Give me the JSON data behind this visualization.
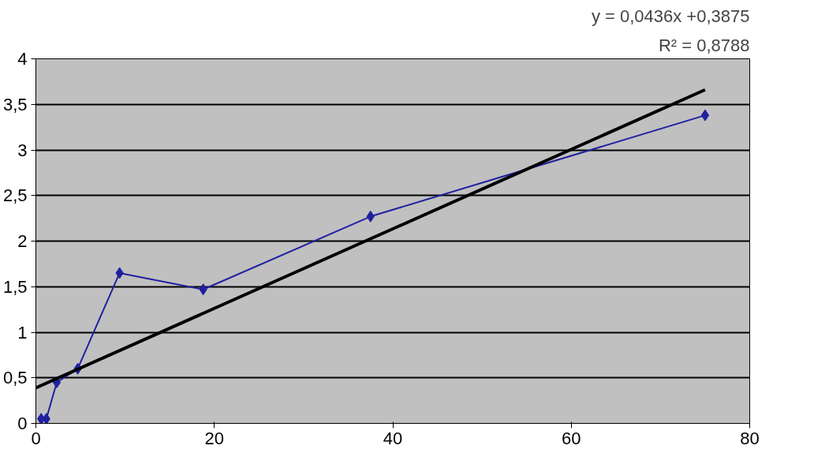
{
  "chart_data": {
    "type": "line",
    "x": [
      0.59,
      1.17,
      2.34,
      4.69,
      9.38,
      18.75,
      37.5,
      75
    ],
    "series": [
      {
        "color": "#2020a0",
        "values": [
          0.05,
          0.05,
          0.45,
          0.6,
          1.65,
          1.47,
          2.27,
          3.38
        ],
        "marker": "diamond"
      },
      {
        "color": "#000000",
        "x": [
          0,
          75
        ],
        "values": [
          0.39,
          3.66
        ],
        "marker": "none"
      }
    ],
    "xlim": [
      0,
      80
    ],
    "xticks": [
      0,
      20,
      40,
      60,
      80
    ],
    "ylim": [
      0,
      4
    ],
    "yticks": [
      0,
      {
        "value": 0.5,
        "label": "0,5"
      },
      1,
      {
        "value": 1.5,
        "label": "1,5"
      },
      2,
      {
        "value": 2.5,
        "label": "2,5"
      },
      3,
      {
        "value": 3.5,
        "label": "3,5"
      },
      4
    ],
    "grid": "y",
    "annotations": [
      "y = 0,0436x +0,3875",
      "R² = 0,8788"
    ]
  }
}
